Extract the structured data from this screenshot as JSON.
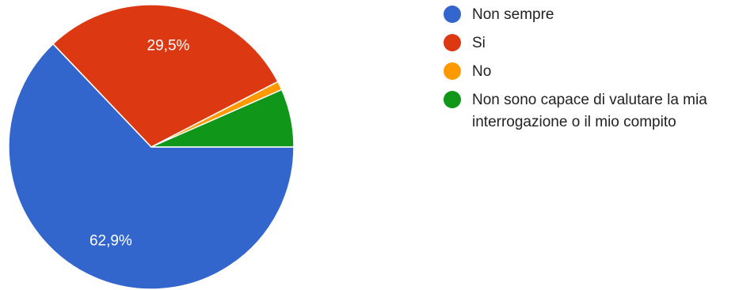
{
  "chart_data": {
    "type": "pie",
    "slices": [
      {
        "label": "Non sempre",
        "value": 62.9,
        "display": "62,9%",
        "color": "#3366cc"
      },
      {
        "label": "Si",
        "value": 29.5,
        "display": "29,5%",
        "color": "#dc3912"
      },
      {
        "label": "No",
        "value": 1.0,
        "display": "",
        "color": "#ff9900"
      },
      {
        "label": "Non sono capace di valutare la mia interrogazione o il mio compito",
        "value": 6.6,
        "display": "",
        "color": "#109618"
      }
    ],
    "start_angle": "3 o'clock, clockwise",
    "legend_position": "right"
  }
}
